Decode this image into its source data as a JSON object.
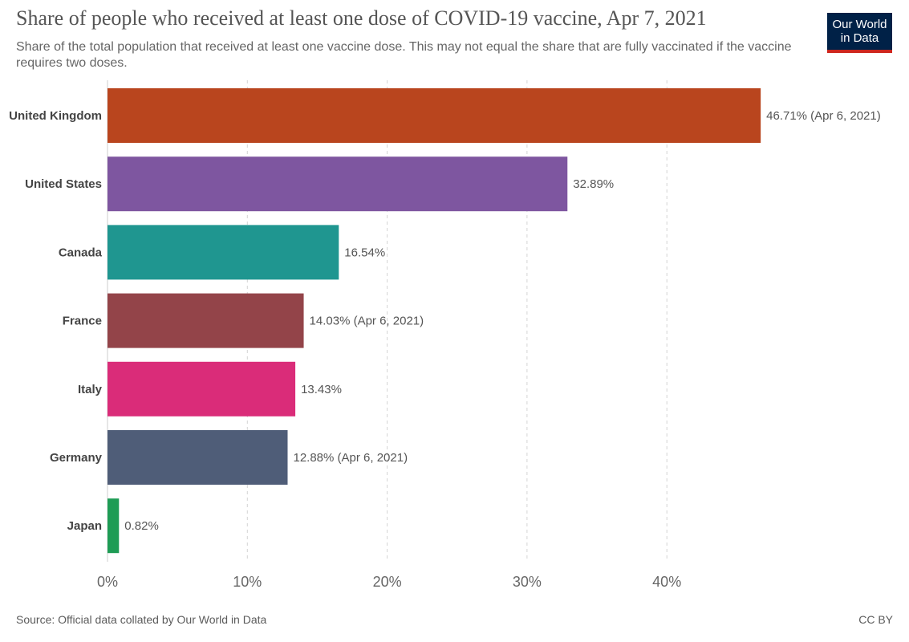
{
  "header": {
    "title": "Share of people who received at least one dose of COVID-19 vaccine, Apr 7, 2021",
    "subtitle": "Share of the total population that received at least one vaccine dose. This may not equal the share that are fully vaccinated if the vaccine requires two doses.",
    "logo_line1": "Our World",
    "logo_line2": "in Data",
    "logo_colors": {
      "background": "#002147",
      "accent": "#ce261e"
    }
  },
  "footer": {
    "source": "Source: Official data collated by Our World in Data",
    "license": "CC BY"
  },
  "chart_data": {
    "type": "bar",
    "orientation": "horizontal",
    "categories": [
      "United Kingdom",
      "United States",
      "Canada",
      "France",
      "Italy",
      "Germany",
      "Japan"
    ],
    "values": [
      46.71,
      32.89,
      16.54,
      14.03,
      13.43,
      12.88,
      0.82
    ],
    "value_labels": [
      "46.71% (Apr 6, 2021)",
      "32.89%",
      "16.54%",
      "14.03% (Apr 6, 2021)",
      "13.43%",
      "12.88% (Apr 6, 2021)",
      "0.82%"
    ],
    "colors": [
      "#b9451e",
      "#7e56a0",
      "#1f9690",
      "#934449",
      "#da2c79",
      "#4f5d78",
      "#1e9c55"
    ],
    "xlim": [
      0,
      50
    ],
    "xticks": [
      0,
      10,
      20,
      30,
      40
    ],
    "xtick_labels": [
      "0%",
      "10%",
      "20%",
      "30%",
      "40%"
    ],
    "grid": "vertical dashed",
    "title": "Share of people who received at least one dose of COVID-19 vaccine, Apr 7, 2021",
    "xlabel": "",
    "ylabel": ""
  }
}
